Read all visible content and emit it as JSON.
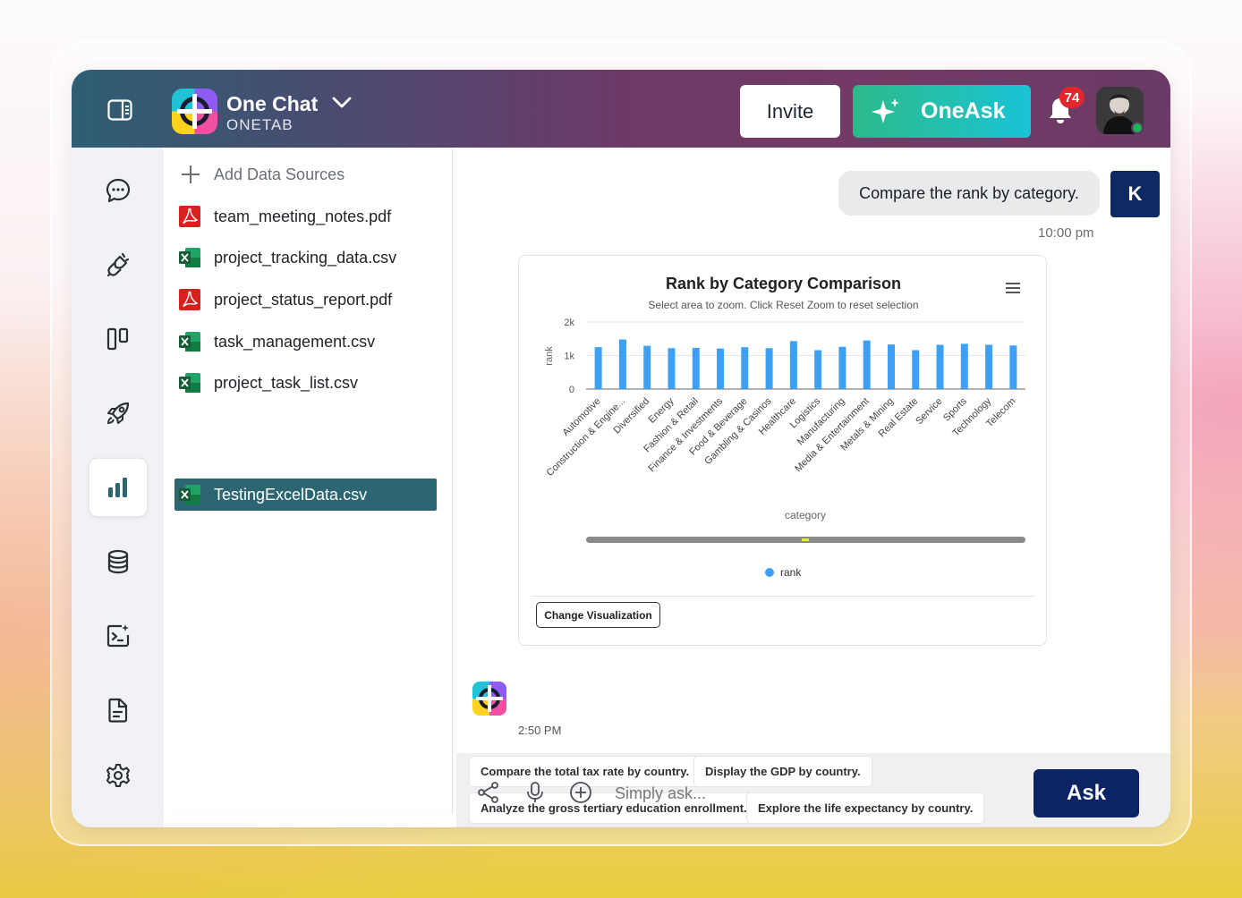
{
  "header": {
    "app_name": "One Chat",
    "app_sub": "ONETAB",
    "invite_label": "Invite",
    "oneask_label": "OneAsk",
    "notification_count": "74"
  },
  "rail": {
    "items": [
      "chat",
      "plugins",
      "board",
      "launch",
      "analytics",
      "database",
      "ai-terminal",
      "document",
      "settings"
    ],
    "active": "analytics"
  },
  "data_sources": {
    "add_label": "Add Data Sources",
    "files": [
      {
        "name": "team_meeting_notes.pdf",
        "type": "pdf"
      },
      {
        "name": "project_tracking_data.csv",
        "type": "csv"
      },
      {
        "name": "project_status_report.pdf",
        "type": "pdf"
      },
      {
        "name": "task_management.csv",
        "type": "csv"
      },
      {
        "name": "project_task_list.csv",
        "type": "csv"
      },
      {
        "name": "TestingExcelData.csv",
        "type": "csv",
        "selected": true
      }
    ]
  },
  "chat": {
    "user_message": "Compare the rank by category.",
    "user_initial": "K",
    "user_time": "10:00 pm",
    "bot_time": "2:50 PM",
    "change_viz_label": "Change Visualization"
  },
  "chart_data": {
    "type": "bar",
    "title": "Rank by Category Comparison",
    "subtitle": "Select area to zoom. Click Reset Zoom to reset selection",
    "xlabel": "category",
    "ylabel": "rank",
    "ylim": [
      0,
      2000
    ],
    "yticks": [
      "0",
      "1k",
      "2k"
    ],
    "legend": "rank",
    "legend_position": "bottom",
    "color": "#3ea0f5",
    "categories": [
      "Automotive",
      "Construction & Engine...",
      "Diversified",
      "Energy",
      "Fashion & Retail",
      "Finance & Investments",
      "Food & Beverage",
      "Gambling & Casinos",
      "Healthcare",
      "Logistics",
      "Manufacturing",
      "Media & Entertainment",
      "Metals & Mining",
      "Real Estate",
      "Service",
      "Sports",
      "Technology",
      "Telecom"
    ],
    "series": [
      {
        "name": "rank",
        "values": [
          1250,
          1480,
          1290,
          1220,
          1230,
          1210,
          1250,
          1220,
          1430,
          1160,
          1260,
          1450,
          1330,
          1160,
          1320,
          1350,
          1320,
          1300
        ]
      }
    ]
  },
  "suggestions": [
    "Compare the total tax rate by country.",
    "Display the GDP by country.",
    "Analyze the gross tertiary education enrollment.",
    "Explore the life expectancy by country."
  ],
  "input": {
    "placeholder": "Simply ask...",
    "ask_label": "Ask"
  }
}
